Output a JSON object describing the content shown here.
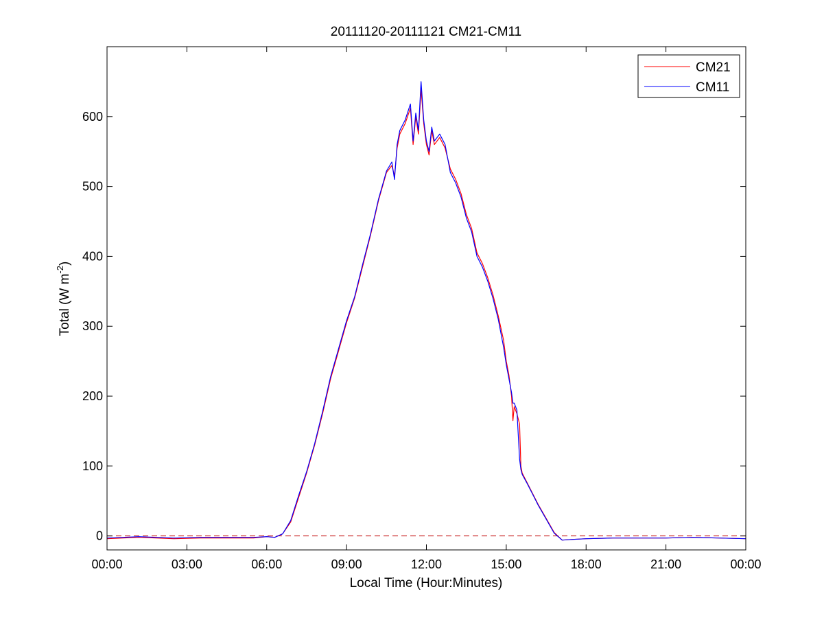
{
  "chart_data": {
    "type": "line",
    "title": "20111120-20111121 CM21-CM11",
    "xlabel": "Local Time (Hour:Minutes)",
    "ylabel": {
      "base": "Total (W m",
      "sup": "-2",
      "close": ")"
    },
    "x_unit": "hour of day",
    "xlim": [
      0,
      24
    ],
    "ylim": [
      -20,
      700
    ],
    "x_ticks": [
      0,
      3,
      6,
      9,
      12,
      15,
      18,
      21,
      24
    ],
    "x_tick_labels": [
      "00:00",
      "03:00",
      "06:00",
      "09:00",
      "12:00",
      "15:00",
      "18:00",
      "21:00",
      "00:00"
    ],
    "y_ticks": [
      0,
      100,
      200,
      300,
      400,
      500,
      600
    ],
    "y_tick_labels": [
      "0",
      "100",
      "200",
      "300",
      "400",
      "500",
      "600"
    ],
    "grid": false,
    "legend": "top-right",
    "reference_line": {
      "y": 0,
      "style": "dashed",
      "color": "#c00000"
    },
    "series": [
      {
        "name": "CM21",
        "color": "#ff0000",
        "points": [
          [
            0.0,
            -4
          ],
          [
            1.2,
            -2
          ],
          [
            2.5,
            -4
          ],
          [
            3.5,
            -3
          ],
          [
            4.5,
            -3
          ],
          [
            5.5,
            -3
          ],
          [
            6.0,
            -1
          ],
          [
            6.3,
            -2
          ],
          [
            6.6,
            3
          ],
          [
            6.9,
            20
          ],
          [
            7.2,
            55
          ],
          [
            7.5,
            90
          ],
          [
            7.8,
            130
          ],
          [
            8.1,
            175
          ],
          [
            8.4,
            225
          ],
          [
            8.7,
            265
          ],
          [
            9.0,
            305
          ],
          [
            9.3,
            340
          ],
          [
            9.6,
            385
          ],
          [
            9.9,
            430
          ],
          [
            10.2,
            480
          ],
          [
            10.5,
            520
          ],
          [
            10.7,
            530
          ],
          [
            10.8,
            515
          ],
          [
            10.9,
            555
          ],
          [
            11.0,
            575
          ],
          [
            11.2,
            590
          ],
          [
            11.4,
            612
          ],
          [
            11.5,
            560
          ],
          [
            11.6,
            600
          ],
          [
            11.7,
            575
          ],
          [
            11.8,
            640
          ],
          [
            11.9,
            590
          ],
          [
            12.0,
            560
          ],
          [
            12.1,
            545
          ],
          [
            12.2,
            580
          ],
          [
            12.3,
            560
          ],
          [
            12.5,
            570
          ],
          [
            12.7,
            555
          ],
          [
            12.9,
            525
          ],
          [
            13.1,
            510
          ],
          [
            13.3,
            490
          ],
          [
            13.5,
            460
          ],
          [
            13.7,
            440
          ],
          [
            13.9,
            405
          ],
          [
            14.1,
            390
          ],
          [
            14.3,
            370
          ],
          [
            14.5,
            345
          ],
          [
            14.7,
            315
          ],
          [
            14.9,
            280
          ],
          [
            15.0,
            250
          ],
          [
            15.1,
            230
          ],
          [
            15.2,
            200
          ],
          [
            15.25,
            165
          ],
          [
            15.3,
            185
          ],
          [
            15.4,
            175
          ],
          [
            15.5,
            160
          ],
          [
            15.55,
            100
          ],
          [
            15.6,
            90
          ],
          [
            15.8,
            75
          ],
          [
            16.0,
            60
          ],
          [
            16.2,
            45
          ],
          [
            16.5,
            25
          ],
          [
            16.8,
            5
          ],
          [
            17.1,
            -6
          ],
          [
            17.5,
            -5
          ],
          [
            18.0,
            -4
          ],
          [
            19.0,
            -3
          ],
          [
            20.0,
            -3
          ],
          [
            21.0,
            -3
          ],
          [
            22.0,
            -2
          ],
          [
            23.0,
            -3
          ],
          [
            24.0,
            -4
          ]
        ]
      },
      {
        "name": "CM11",
        "color": "#0000ff",
        "points": [
          [
            0.0,
            -3
          ],
          [
            1.2,
            -1
          ],
          [
            2.5,
            -3
          ],
          [
            3.5,
            -2
          ],
          [
            4.5,
            -2
          ],
          [
            5.5,
            -2
          ],
          [
            6.0,
            -1
          ],
          [
            6.3,
            -2
          ],
          [
            6.6,
            3
          ],
          [
            6.9,
            22
          ],
          [
            7.2,
            58
          ],
          [
            7.5,
            92
          ],
          [
            7.8,
            132
          ],
          [
            8.1,
            178
          ],
          [
            8.4,
            228
          ],
          [
            8.7,
            268
          ],
          [
            9.0,
            308
          ],
          [
            9.3,
            342
          ],
          [
            9.6,
            388
          ],
          [
            9.9,
            432
          ],
          [
            10.2,
            482
          ],
          [
            10.5,
            522
          ],
          [
            10.7,
            535
          ],
          [
            10.8,
            510
          ],
          [
            10.9,
            560
          ],
          [
            11.0,
            580
          ],
          [
            11.2,
            595
          ],
          [
            11.4,
            618
          ],
          [
            11.5,
            565
          ],
          [
            11.6,
            605
          ],
          [
            11.7,
            580
          ],
          [
            11.8,
            650
          ],
          [
            11.9,
            595
          ],
          [
            12.0,
            565
          ],
          [
            12.1,
            550
          ],
          [
            12.2,
            585
          ],
          [
            12.3,
            565
          ],
          [
            12.5,
            575
          ],
          [
            12.7,
            560
          ],
          [
            12.9,
            520
          ],
          [
            13.1,
            505
          ],
          [
            13.3,
            485
          ],
          [
            13.5,
            455
          ],
          [
            13.7,
            435
          ],
          [
            13.9,
            400
          ],
          [
            14.1,
            385
          ],
          [
            14.3,
            365
          ],
          [
            14.5,
            340
          ],
          [
            14.7,
            310
          ],
          [
            14.9,
            270
          ],
          [
            15.0,
            245
          ],
          [
            15.1,
            225
          ],
          [
            15.2,
            205
          ],
          [
            15.25,
            190
          ],
          [
            15.3,
            190
          ],
          [
            15.4,
            180
          ],
          [
            15.5,
            110
          ],
          [
            15.55,
            95
          ],
          [
            15.6,
            88
          ],
          [
            15.8,
            74
          ],
          [
            16.0,
            59
          ],
          [
            16.2,
            44
          ],
          [
            16.5,
            24
          ],
          [
            16.8,
            4
          ],
          [
            17.1,
            -6
          ],
          [
            17.5,
            -5
          ],
          [
            18.0,
            -4
          ],
          [
            19.0,
            -3
          ],
          [
            20.0,
            -3
          ],
          [
            21.0,
            -3
          ],
          [
            22.0,
            -2
          ],
          [
            23.0,
            -3
          ],
          [
            24.0,
            -4
          ]
        ]
      }
    ]
  }
}
